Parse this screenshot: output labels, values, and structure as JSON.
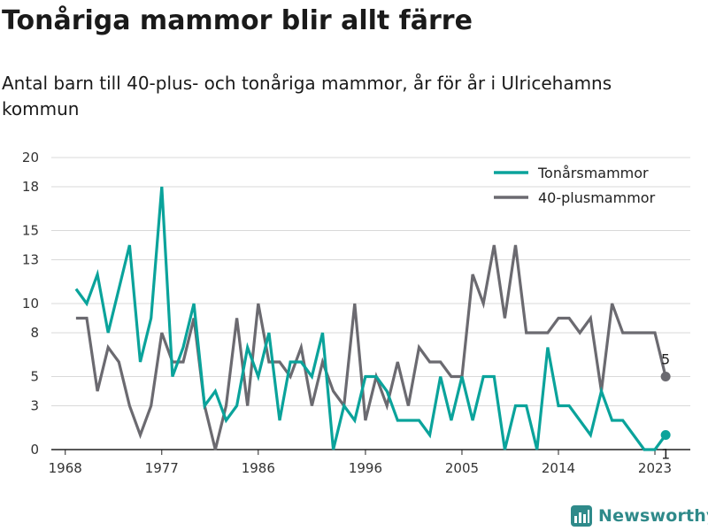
{
  "title": "Tonåriga mammor blir allt färre",
  "subtitle": "Antal barn till 40-plus- och tonåriga mammor, år för år i Ulricehamns kommun",
  "brand": "Newsworthy",
  "chart_data": {
    "type": "line",
    "x": [
      1969,
      1970,
      1971,
      1972,
      1973,
      1974,
      1975,
      1976,
      1977,
      1978,
      1979,
      1980,
      1981,
      1982,
      1983,
      1984,
      1985,
      1986,
      1987,
      1988,
      1989,
      1990,
      1991,
      1992,
      1993,
      1994,
      1995,
      1996,
      1997,
      1998,
      1999,
      2000,
      2001,
      2002,
      2003,
      2004,
      2005,
      2006,
      2007,
      2008,
      2009,
      2010,
      2011,
      2012,
      2013,
      2014,
      2015,
      2016,
      2017,
      2018,
      2019,
      2020,
      2021,
      2022,
      2023,
      2024
    ],
    "xticks": [
      1968,
      1977,
      1986,
      1996,
      2005,
      2014,
      2023
    ],
    "yticks": [
      0,
      3,
      5,
      8,
      10,
      13,
      15,
      18,
      20
    ],
    "ylim": [
      0,
      20
    ],
    "grid": true,
    "legend": "top-right",
    "series": [
      {
        "name": "Tonårsmammor",
        "color": "#0aa39b",
        "values": [
          11,
          10,
          12,
          8,
          11,
          14,
          6,
          9,
          18,
          5,
          7,
          10,
          3,
          4,
          2,
          3,
          7,
          5,
          8,
          2,
          6,
          6,
          5,
          8,
          0,
          3,
          2,
          5,
          5,
          4,
          2,
          2,
          2,
          1,
          5,
          2,
          5,
          2,
          5,
          5,
          0,
          3,
          3,
          0,
          7,
          3,
          3,
          2,
          1,
          4,
          2,
          2,
          1,
          0,
          0,
          1
        ]
      },
      {
        "name": "40-plusmammor",
        "color": "#6b6a70",
        "values": [
          9,
          9,
          4,
          7,
          6,
          3,
          1,
          3,
          8,
          6,
          6,
          9,
          3,
          0,
          3,
          9,
          3,
          10,
          6,
          6,
          5,
          7,
          3,
          6,
          4,
          3,
          10,
          2,
          5,
          3,
          6,
          3,
          7,
          6,
          6,
          5,
          5,
          12,
          10,
          14,
          9,
          14,
          8,
          8,
          8,
          9,
          9,
          8,
          9,
          4,
          10,
          8,
          8,
          8,
          8,
          5
        ]
      }
    ],
    "end_labels": [
      {
        "series": "40-plusmammor",
        "text": "5"
      },
      {
        "series": "Tonårsmammor",
        "text": "1"
      }
    ]
  }
}
